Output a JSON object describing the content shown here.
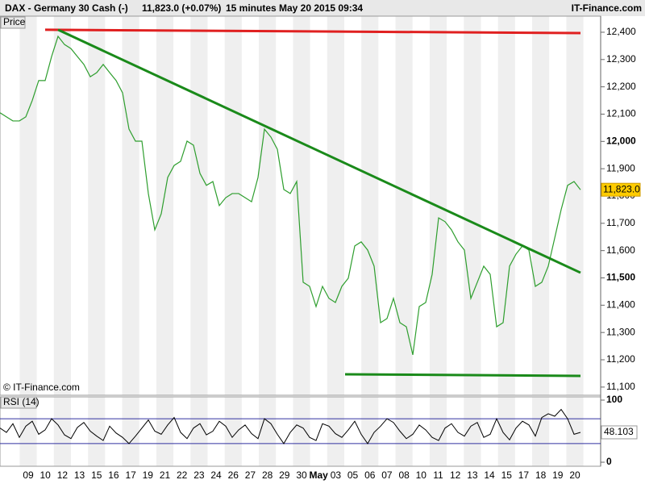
{
  "header": {
    "instrument": "DAX - Germany 30 Cash (-)",
    "quote": "11,823.0 (+0.07%)",
    "interval": "15 minutes",
    "timestamp": "May 20 2015 09:34",
    "brand": "IT-Finance.com"
  },
  "chart_data": [
    {
      "type": "line",
      "panel_label": "Price",
      "copyright": "© IT-Finance.com",
      "color": "#2e9e2e",
      "values": [
        12105,
        12090,
        12075,
        12075,
        12090,
        12150,
        12223,
        12223,
        12311,
        12385,
        12355,
        12340,
        12311,
        12282,
        12237,
        12252,
        12282,
        12252,
        12223,
        12178,
        12045,
        12001,
        12001,
        11809,
        11676,
        11735,
        11868,
        11912,
        11927,
        12001,
        11986,
        11883,
        11839,
        11853,
        11765,
        11794,
        11809,
        11809,
        11794,
        11779,
        11868,
        12045,
        12016,
        11971,
        11824,
        11809,
        11853,
        11484,
        11469,
        11395,
        11469,
        11425,
        11410,
        11469,
        11499,
        11617,
        11632,
        11602,
        11543,
        11336,
        11351,
        11425,
        11336,
        11321,
        11218,
        11395,
        11410,
        11513,
        11720,
        11706,
        11676,
        11632,
        11602,
        11425,
        11484,
        11543,
        11513,
        11321,
        11336,
        11543,
        11587,
        11617,
        11602,
        11469,
        11484,
        11543,
        11646,
        11750,
        11839,
        11853,
        11823
      ],
      "last_label": "11,823.0",
      "ylim": [
        11070,
        12459
      ],
      "yticks": [
        {
          "value": 11100,
          "label": "11,100"
        },
        {
          "value": 11200,
          "label": "11,200"
        },
        {
          "value": 11300,
          "label": "11,300"
        },
        {
          "value": 11400,
          "label": "11,400"
        },
        {
          "value": 11500,
          "label": "11,500"
        },
        {
          "value": 11600,
          "label": "11,600"
        },
        {
          "value": 11700,
          "label": "11,700"
        },
        {
          "value": 11800,
          "label": "11,800"
        },
        {
          "value": 11900,
          "label": "11,900"
        },
        {
          "value": 12000,
          "label": "12,000"
        },
        {
          "value": 12100,
          "label": "12,100"
        },
        {
          "value": 12200,
          "label": "12,200"
        },
        {
          "value": 12300,
          "label": "12,300"
        },
        {
          "value": 12400,
          "label": "12,400"
        }
      ],
      "trendlines": [
        {
          "color": "#e02020",
          "x": [
            7,
            90
          ],
          "y": [
            12409,
            12397
          ]
        },
        {
          "color": "#1a8a1a",
          "x": [
            9,
            90
          ],
          "y": [
            12409,
            11519
          ]
        },
        {
          "color": "#1a8a1a",
          "x": [
            53.5,
            90
          ],
          "y": [
            11147,
            11141
          ]
        }
      ],
      "day_labels": [
        "09",
        "10",
        "12",
        "13",
        "15",
        "16",
        "17",
        "19",
        "21",
        "22",
        "23",
        "24",
        "26",
        "27",
        "28",
        "29",
        "30",
        "May",
        "03",
        "05",
        "06",
        "07",
        "08",
        "10",
        "11",
        "12",
        "13",
        "14",
        "15",
        "17",
        "18",
        "19",
        "20"
      ]
    },
    {
      "type": "line",
      "panel_label": "RSI (14)",
      "color": "#000000",
      "values": [
        55,
        48,
        62,
        40,
        58,
        66,
        45,
        52,
        70,
        60,
        44,
        38,
        56,
        64,
        50,
        42,
        35,
        58,
        47,
        40,
        30,
        42,
        55,
        68,
        50,
        45,
        60,
        72,
        48,
        38,
        55,
        62,
        44,
        50,
        66,
        58,
        40,
        52,
        60,
        46,
        38,
        70,
        62,
        45,
        30,
        48,
        60,
        55,
        40,
        35,
        62,
        58,
        46,
        40,
        52,
        66,
        45,
        30,
        48,
        58,
        70,
        64,
        50,
        38,
        45,
        60,
        52,
        40,
        35,
        55,
        62,
        48,
        42,
        58,
        64,
        40,
        45,
        70,
        48,
        36,
        55,
        66,
        60,
        42,
        72,
        78,
        74,
        85,
        70,
        45,
        48.103
      ],
      "ylim": [
        0,
        100
      ],
      "yticks": [
        0,
        100
      ],
      "levels": [
        30,
        70
      ],
      "level_color": "#3030a0"
    }
  ]
}
